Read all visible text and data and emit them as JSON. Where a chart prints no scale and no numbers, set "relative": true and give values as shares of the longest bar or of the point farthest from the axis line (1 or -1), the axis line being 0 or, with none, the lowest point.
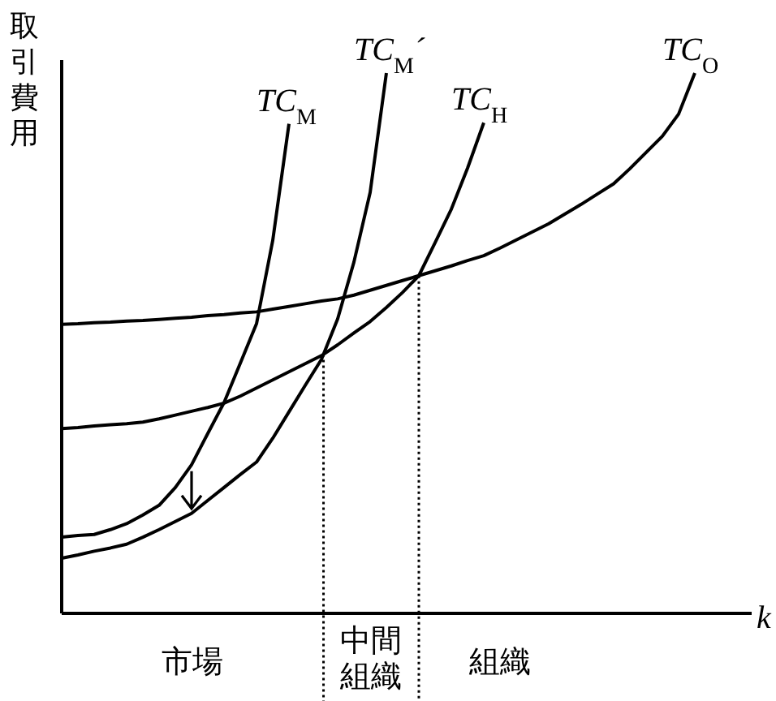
{
  "chart_data": {
    "type": "line",
    "relative": true,
    "ylabel": "取引費用",
    "xlabel": "k",
    "line_style": "solid",
    "categories": [
      null,
      null,
      null,
      null,
      null,
      null,
      null,
      null,
      null,
      null,
      null,
      null,
      null,
      null,
      null,
      null,
      null,
      null,
      null,
      null,
      null,
      null,
      null,
      null,
      null,
      null,
      null,
      null,
      null,
      null,
      null,
      null,
      null,
      null,
      null,
      null,
      null,
      null,
      null,
      null,
      null,
      null,
      null
    ],
    "series": [
      {
        "name": "TC$_{M}$",
        "color": "#000000",
        "values": [
          0.141,
          0.144,
          0.146,
          0.155,
          0.166,
          0.182,
          0.2,
          0.233,
          0.275,
          0.333,
          0.39,
          0.463,
          0.536,
          0.69,
          0.906,
          null,
          null,
          null,
          null,
          null,
          null,
          null,
          null,
          null,
          null,
          null,
          null,
          null,
          null,
          null,
          null,
          null,
          null,
          null,
          null,
          null,
          null,
          null,
          null,
          null,
          null,
          null,
          null
        ]
      },
      {
        "name": "TC$_{M}$´",
        "color": "#000000",
        "values": [
          0.102,
          0.108,
          0.115,
          0.121,
          0.128,
          0.141,
          0.155,
          0.17,
          0.185,
          0.209,
          0.233,
          0.257,
          0.28,
          0.324,
          0.373,
          0.422,
          0.47,
          0.545,
          0.65,
          0.779,
          1.0,
          null,
          null,
          null,
          null,
          null,
          null,
          null,
          null,
          null,
          null,
          null,
          null,
          null,
          null,
          null,
          null,
          null,
          null,
          null,
          null,
          null,
          null
        ]
      },
      {
        "name": "TC$_{H}$",
        "color": "#000000",
        "values": [
          0.342,
          0.344,
          0.347,
          0.349,
          0.351,
          0.354,
          0.36,
          0.367,
          0.374,
          0.381,
          0.389,
          0.402,
          0.417,
          0.432,
          0.447,
          0.462,
          0.477,
          0.497,
          0.519,
          0.54,
          0.566,
          0.594,
          0.625,
          0.686,
          0.748,
          0.824,
          0.908,
          null,
          null,
          null,
          null,
          null,
          null,
          null,
          null,
          null,
          null,
          null,
          null,
          null,
          null,
          null,
          null
        ]
      },
      {
        "name": "TC$_{O}$",
        "color": "#000000",
        "values": [
          0.535,
          0.536,
          0.538,
          0.539,
          0.541,
          0.542,
          0.544,
          0.546,
          0.548,
          0.551,
          0.553,
          0.556,
          0.558,
          0.563,
          0.568,
          0.573,
          0.578,
          0.582,
          0.589,
          0.598,
          0.607,
          0.616,
          0.625,
          0.634,
          0.643,
          0.653,
          0.662,
          0.676,
          0.691,
          0.706,
          0.721,
          0.739,
          0.757,
          0.776,
          0.795,
          0.823,
          0.853,
          0.883,
          0.924,
          1.0,
          null,
          null,
          null
        ]
      }
    ],
    "annotations": [
      "市場",
      "中間組織",
      "組織"
    ]
  }
}
